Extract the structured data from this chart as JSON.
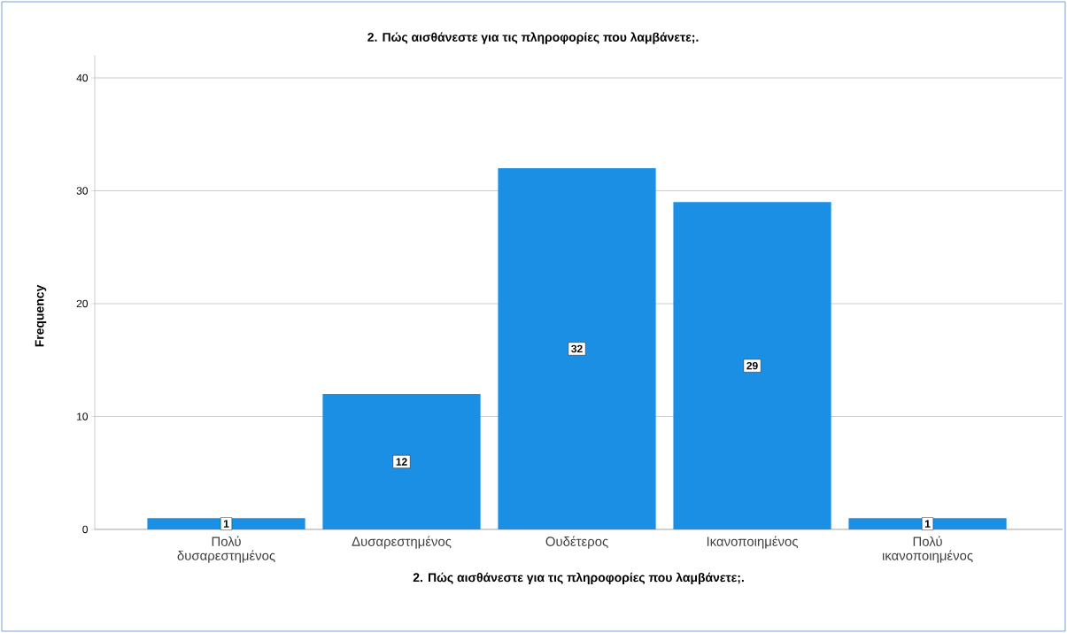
{
  "chart_data": {
    "type": "bar",
    "title": "2. Πώς αισθάνεστε για τις πληροφορίες που λαμβάνετε;.",
    "xlabel": "2. Πώς αισθάνεστε για τις πληροφορίες που λαμβάνετε;.",
    "ylabel": "Frequency",
    "categories": [
      "Πολύ δυσαρεστημένος",
      "Δυσαρεστημένος",
      "Ουδέτερος",
      "Ικανοποιημένος",
      "Πολύ ικανοποιημένος"
    ],
    "values": [
      1,
      12,
      32,
      29,
      1
    ],
    "color": "#1a8fe3",
    "ylim": [
      0,
      42
    ],
    "yticks": [
      0,
      10,
      20,
      30,
      40
    ],
    "grid": "y",
    "data_labels": true
  }
}
